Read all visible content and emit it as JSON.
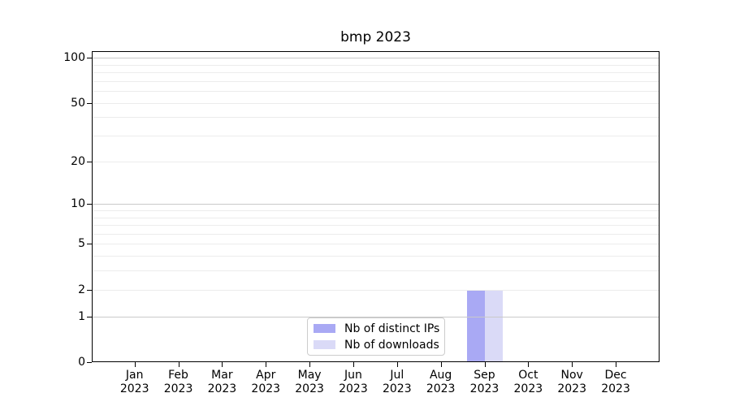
{
  "chart_data": {
    "type": "bar",
    "title": "bmp 2023",
    "categories": [
      "Jan 2023",
      "Feb 2023",
      "Mar 2023",
      "Apr 2023",
      "May 2023",
      "Jun 2023",
      "Jul 2023",
      "Aug 2023",
      "Sep 2023",
      "Oct 2023",
      "Nov 2023",
      "Dec 2023"
    ],
    "series": [
      {
        "name": "Nb of distinct IPs",
        "color": "#a9a9f4",
        "values": [
          0,
          0,
          0,
          0,
          0,
          0,
          0,
          0,
          2,
          0,
          0,
          0
        ]
      },
      {
        "name": "Nb of downloads",
        "color": "#dadaf7",
        "values": [
          0,
          0,
          0,
          0,
          0,
          0,
          0,
          0,
          2,
          0,
          0,
          0
        ]
      }
    ],
    "yscale": "log1p",
    "ylim": [
      0,
      110
    ],
    "y_tick_values": [
      0,
      1,
      2,
      5,
      10,
      20,
      50,
      100
    ],
    "y_major_gridlines": [
      1,
      10,
      100
    ],
    "y_minor_gridlines": [
      2,
      3,
      4,
      5,
      6,
      7,
      8,
      9,
      20,
      30,
      40,
      50,
      60,
      70,
      80,
      90
    ],
    "grid": true,
    "legend_position": "lower center"
  },
  "colors": {
    "grid_major": "#c9c9c9",
    "grid_minor": "#ececec",
    "spine": "#000000",
    "text": "#000000",
    "legend_border": "#cccccc"
  }
}
